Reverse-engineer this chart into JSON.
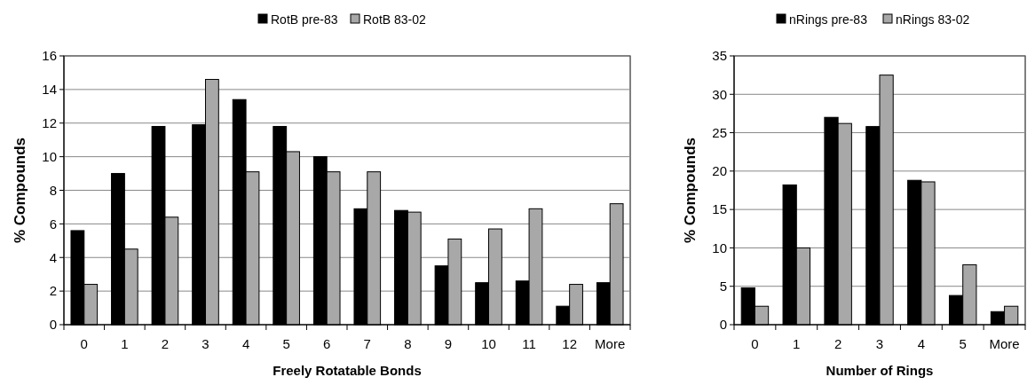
{
  "chart_data": [
    {
      "type": "bar",
      "xlabel": "Freely Rotatable Bonds",
      "ylabel": "% Compounds",
      "categories": [
        "0",
        "1",
        "2",
        "3",
        "4",
        "5",
        "6",
        "7",
        "8",
        "9",
        "10",
        "11",
        "12",
        "More"
      ],
      "series": [
        {
          "name": "RotB pre-83",
          "color": "#000000",
          "values": [
            5.6,
            9.0,
            11.8,
            11.9,
            13.4,
            11.8,
            10.0,
            6.9,
            6.8,
            3.5,
            2.5,
            2.6,
            1.1,
            2.5
          ]
        },
        {
          "name": "RotB 83-02",
          "color": "#a8a8a8",
          "values": [
            2.4,
            4.5,
            6.4,
            14.6,
            9.1,
            10.3,
            9.1,
            9.1,
            6.7,
            5.1,
            5.7,
            6.9,
            2.4,
            7.2
          ]
        }
      ],
      "ylim": [
        0,
        16
      ],
      "yticks": [
        0,
        2,
        4,
        6,
        8,
        10,
        12,
        14,
        16
      ],
      "grid": "y",
      "legend": "top"
    },
    {
      "type": "bar",
      "xlabel": "Number of Rings",
      "ylabel": "% Compounds",
      "categories": [
        "0",
        "1",
        "2",
        "3",
        "4",
        "5",
        "More"
      ],
      "series": [
        {
          "name": "nRings pre-83",
          "color": "#000000",
          "values": [
            4.8,
            18.2,
            27.0,
            25.8,
            18.8,
            3.8,
            1.7
          ]
        },
        {
          "name": "nRings 83-02",
          "color": "#a8a8a8",
          "values": [
            2.4,
            10.0,
            26.2,
            32.5,
            18.6,
            7.8,
            2.4
          ]
        }
      ],
      "ylim": [
        0,
        35
      ],
      "yticks": [
        0,
        5,
        10,
        15,
        20,
        25,
        30,
        35
      ],
      "grid": "y",
      "legend": "top"
    }
  ]
}
